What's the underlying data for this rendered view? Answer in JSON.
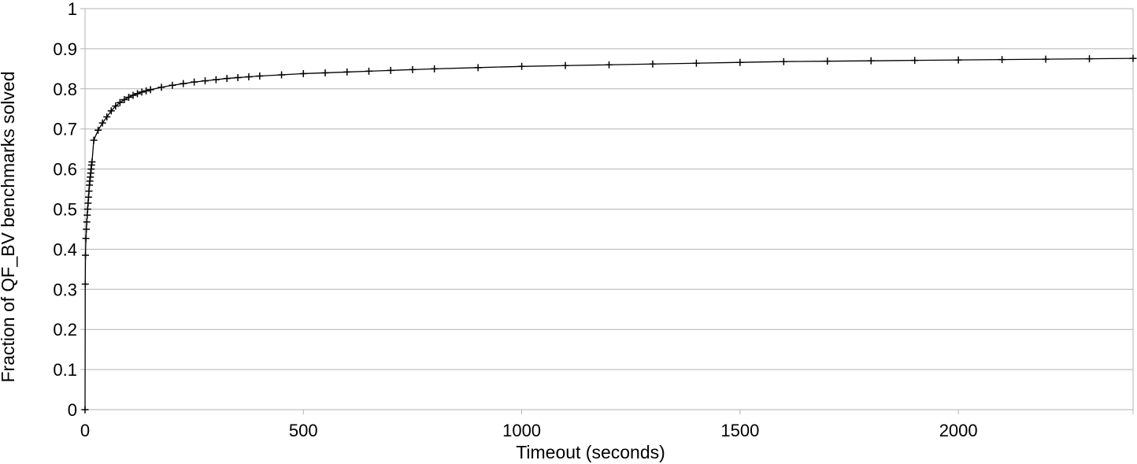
{
  "chart_data": {
    "type": "line",
    "title": "",
    "xlabel": "Timeout (seconds)",
    "ylabel": "Fraction of QF_BV benchmarks solved",
    "xlim": [
      0,
      2400
    ],
    "ylim": [
      0,
      1
    ],
    "x_ticks": [
      "0",
      "500",
      "1000",
      "1500",
      "2000"
    ],
    "y_ticks": [
      "0",
      "0.1",
      "0.2",
      "0.3",
      "0.4",
      "0.5",
      "0.6",
      "0.7",
      "0.8",
      "0.9",
      "1"
    ],
    "grid": "horizontal",
    "legend": "none",
    "marker": "+",
    "colors": {
      "line": "#000000",
      "grid": "#b3b3b3",
      "axis": "#b3b3b3"
    },
    "series": [
      {
        "values": [
          [
            0,
            0.0
          ],
          [
            0.5,
            0.313
          ],
          [
            1,
            0.385
          ],
          [
            2,
            0.427
          ],
          [
            3,
            0.45
          ],
          [
            4,
            0.468
          ],
          [
            5,
            0.485
          ],
          [
            6,
            0.5
          ],
          [
            7,
            0.515
          ],
          [
            8,
            0.53
          ],
          [
            9,
            0.545
          ],
          [
            10,
            0.56
          ],
          [
            11,
            0.57
          ],
          [
            12,
            0.58
          ],
          [
            13,
            0.59
          ],
          [
            14,
            0.6
          ],
          [
            15,
            0.61
          ],
          [
            16,
            0.618
          ],
          [
            20,
            0.672
          ],
          [
            30,
            0.697
          ],
          [
            40,
            0.715
          ],
          [
            50,
            0.73
          ],
          [
            60,
            0.745
          ],
          [
            70,
            0.757
          ],
          [
            80,
            0.766
          ],
          [
            90,
            0.773
          ],
          [
            100,
            0.779
          ],
          [
            110,
            0.784
          ],
          [
            120,
            0.788
          ],
          [
            130,
            0.792
          ],
          [
            140,
            0.795
          ],
          [
            150,
            0.798
          ],
          [
            175,
            0.804
          ],
          [
            200,
            0.809
          ],
          [
            225,
            0.813
          ],
          [
            250,
            0.817
          ],
          [
            275,
            0.82
          ],
          [
            300,
            0.823
          ],
          [
            325,
            0.826
          ],
          [
            350,
            0.828
          ],
          [
            375,
            0.83
          ],
          [
            400,
            0.832
          ],
          [
            450,
            0.835
          ],
          [
            500,
            0.838
          ],
          [
            550,
            0.84
          ],
          [
            600,
            0.842
          ],
          [
            650,
            0.844
          ],
          [
            700,
            0.846
          ],
          [
            750,
            0.848
          ],
          [
            800,
            0.85
          ],
          [
            900,
            0.853
          ],
          [
            1000,
            0.856
          ],
          [
            1100,
            0.858
          ],
          [
            1200,
            0.86
          ],
          [
            1300,
            0.862
          ],
          [
            1400,
            0.864
          ],
          [
            1500,
            0.866
          ],
          [
            1600,
            0.868
          ],
          [
            1700,
            0.869
          ],
          [
            1800,
            0.87
          ],
          [
            1900,
            0.871
          ],
          [
            2000,
            0.872
          ],
          [
            2100,
            0.873
          ],
          [
            2200,
            0.874
          ],
          [
            2300,
            0.875
          ],
          [
            2400,
            0.876
          ]
        ]
      }
    ]
  }
}
